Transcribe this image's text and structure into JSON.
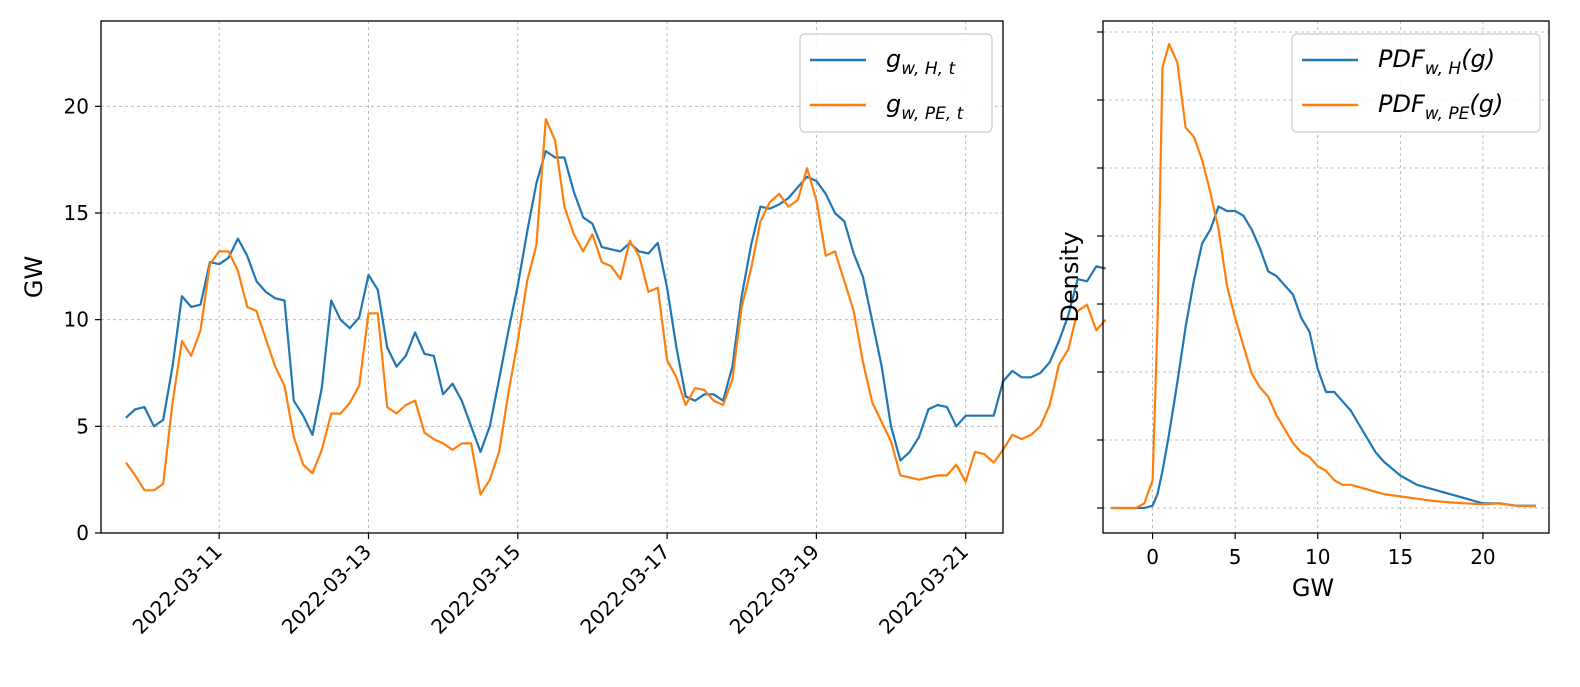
{
  "colors": {
    "series_h": "#1f77b4",
    "series_pe": "#ff7f0e",
    "grid": "#b0b0b0"
  },
  "chart_data": [
    {
      "type": "line",
      "xlabel": "",
      "ylabel": "GW",
      "xlim": [
        "2022-03-09T10:00",
        "2022-03-21T12:00"
      ],
      "ylim": [
        0,
        24
      ],
      "x_ticks": [
        "2022-03-11",
        "2022-03-13",
        "2022-03-15",
        "2022-03-17",
        "2022-03-19",
        "2022-03-21"
      ],
      "y_ticks": [
        0,
        5,
        10,
        15,
        20
      ],
      "grid": true,
      "legend_position": "upper right",
      "x_start": "2022-03-09T18:00",
      "x_step_hours": 3,
      "series": [
        {
          "legend": {
            "base": "g",
            "sub": "w, H, t"
          },
          "color": "#1f77b4",
          "values": [
            5.4,
            5.8,
            5.9,
            5.0,
            5.3,
            7.8,
            11.1,
            10.6,
            10.7,
            12.7,
            12.6,
            12.9,
            13.8,
            13.0,
            11.8,
            11.3,
            11.0,
            10.9,
            6.2,
            5.5,
            4.6,
            6.8,
            10.9,
            10.0,
            9.6,
            10.1,
            12.1,
            11.4,
            8.7,
            7.8,
            8.3,
            9.4,
            8.4,
            8.3,
            6.5,
            7.0,
            6.2,
            5.0,
            3.8,
            5.0,
            7.2,
            9.5,
            11.6,
            14.1,
            16.4,
            17.9,
            17.6,
            17.6,
            16.0,
            14.8,
            14.5,
            13.4,
            13.3,
            13.2,
            13.6,
            13.2,
            13.1,
            13.6,
            11.5,
            8.7,
            6.4,
            6.2,
            6.5,
            6.5,
            6.2,
            7.8,
            11.1,
            13.5,
            15.3,
            15.2,
            15.4,
            15.7,
            16.2,
            16.7,
            16.5,
            15.9,
            15.0,
            14.6,
            13.1,
            12.0,
            9.9,
            7.8,
            5.0,
            3.4,
            3.8,
            4.5,
            5.8,
            6.0,
            5.9,
            5.0,
            5.5,
            5.5,
            5.5,
            5.5,
            7.1,
            7.6,
            7.3,
            7.3,
            7.5,
            8.0,
            9.0,
            10.2,
            11.9,
            11.8,
            12.5,
            12.4
          ]
        },
        {
          "legend": {
            "base": "g",
            "sub": "w, PE, t"
          },
          "color": "#ff7f0e",
          "values": [
            3.3,
            2.7,
            2.0,
            2.0,
            2.3,
            6.1,
            9.0,
            8.3,
            9.5,
            12.6,
            13.2,
            13.2,
            12.3,
            10.6,
            10.4,
            9.1,
            7.8,
            6.9,
            4.5,
            3.2,
            2.8,
            3.9,
            5.6,
            5.6,
            6.1,
            6.9,
            10.3,
            10.3,
            5.9,
            5.6,
            6.0,
            6.2,
            4.7,
            4.4,
            4.2,
            3.9,
            4.2,
            4.2,
            1.8,
            2.5,
            3.8,
            6.6,
            9.0,
            11.8,
            13.5,
            19.4,
            18.4,
            15.3,
            14.0,
            13.2,
            14.0,
            12.7,
            12.5,
            11.9,
            13.7,
            13.0,
            11.3,
            11.5,
            8.1,
            7.3,
            6.0,
            6.8,
            6.7,
            6.2,
            6.0,
            7.2,
            10.6,
            12.4,
            14.6,
            15.5,
            15.9,
            15.3,
            15.6,
            17.1,
            15.6,
            13.0,
            13.2,
            11.8,
            10.4,
            8.0,
            6.1,
            5.2,
            4.3,
            2.7,
            2.6,
            2.5,
            2.6,
            2.7,
            2.7,
            3.2,
            2.4,
            3.8,
            3.7,
            3.3,
            3.9,
            4.6,
            4.4,
            4.6,
            5.0,
            6.0,
            7.9,
            8.6,
            10.4,
            10.7,
            9.5,
            10.0
          ]
        }
      ]
    },
    {
      "type": "line",
      "xlabel": "GW",
      "ylabel": "Density",
      "xlim": [
        -3,
        24
      ],
      "ylim": [
        0,
        1
      ],
      "x_ticks": [
        0,
        5,
        10,
        15,
        20
      ],
      "y_tick_labels_shown": false,
      "grid": true,
      "legend_position": "upper right",
      "x": [
        -2.5,
        -2,
        -1,
        -0.5,
        0,
        0.3,
        0.6,
        1,
        1.5,
        2,
        2.5,
        3,
        3.5,
        4,
        4.5,
        5,
        5.5,
        6,
        6.5,
        7,
        7.5,
        8,
        8.5,
        9,
        9.5,
        10,
        10.5,
        11,
        11.5,
        12,
        12.5,
        13,
        13.5,
        14,
        15,
        16,
        17,
        18,
        19,
        20,
        21,
        22,
        23.2
      ],
      "series": [
        {
          "legend": {
            "base": "PDF",
            "sub": "w, H",
            "arg": "(g)"
          },
          "color": "#1f77b4",
          "values": [
            0,
            0,
            0,
            0,
            0.005,
            0.03,
            0.08,
            0.16,
            0.27,
            0.39,
            0.49,
            0.57,
            0.6,
            0.65,
            0.64,
            0.64,
            0.63,
            0.6,
            0.56,
            0.51,
            0.5,
            0.48,
            0.46,
            0.41,
            0.38,
            0.3,
            0.25,
            0.25,
            0.23,
            0.21,
            0.18,
            0.15,
            0.12,
            0.1,
            0.07,
            0.05,
            0.04,
            0.03,
            0.02,
            0.01,
            0.01,
            0.005,
            0.005
          ]
        },
        {
          "legend": {
            "base": "PDF",
            "sub": "w, PE",
            "arg": "(g)"
          },
          "color": "#ff7f0e",
          "values": [
            0,
            0,
            0,
            0.01,
            0.06,
            0.4,
            0.95,
            1.0,
            0.96,
            0.82,
            0.8,
            0.75,
            0.68,
            0.6,
            0.48,
            0.41,
            0.35,
            0.29,
            0.26,
            0.24,
            0.2,
            0.17,
            0.14,
            0.12,
            0.11,
            0.09,
            0.08,
            0.06,
            0.05,
            0.05,
            0.045,
            0.04,
            0.035,
            0.03,
            0.025,
            0.02,
            0.015,
            0.012,
            0.01,
            0.008,
            0.01,
            0.005,
            0.004
          ]
        }
      ]
    }
  ]
}
